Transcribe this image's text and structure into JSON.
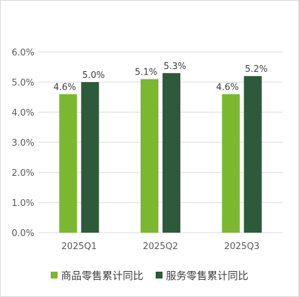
{
  "chart_data": {
    "type": "bar",
    "title": "",
    "xlabel": "",
    "ylabel": "",
    "categories": [
      "2025Q1",
      "2025Q2",
      "2025Q3"
    ],
    "series": [
      {
        "name": "商品零售累计同比",
        "color": "#7cb82f",
        "values": [
          4.6,
          5.1,
          4.6
        ],
        "labels": [
          "4.6%",
          "5.1%",
          "4.6%"
        ]
      },
      {
        "name": "服务零售累计同比",
        "color": "#2d5a3a",
        "values": [
          5.0,
          5.3,
          5.2
        ],
        "labels": [
          "5.0%",
          "5.3%",
          "5.2%"
        ]
      }
    ],
    "ylim": [
      0,
      6
    ],
    "yticks": [
      "0.0%",
      "1.0%",
      "2.0%",
      "3.0%",
      "4.0%",
      "5.0%",
      "6.0%"
    ],
    "grid": true,
    "legend_position": "bottom"
  }
}
